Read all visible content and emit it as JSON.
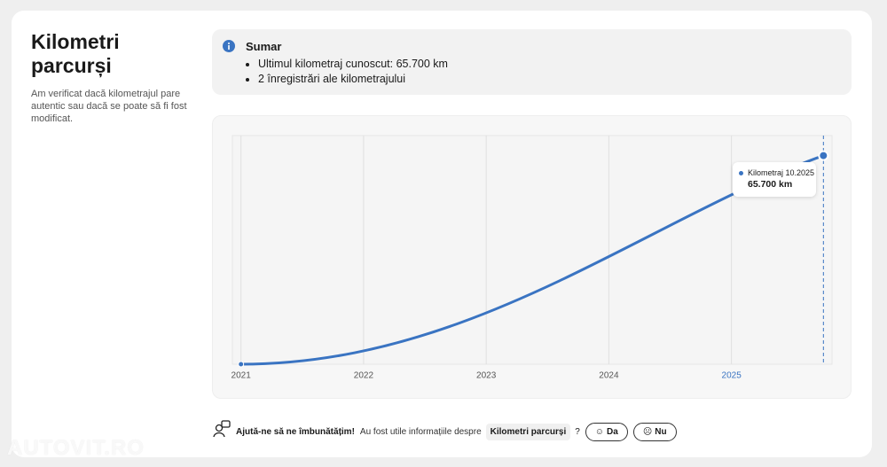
{
  "header": {
    "title": "Kilometri parcurși",
    "description": "Am verificat dacă kilometrajul pare autentic sau dacă se poate să fi fost modificat."
  },
  "summary": {
    "title": "Sumar",
    "items": [
      "Ultimul kilometraj cunoscut: 65.700 km",
      "2 înregistrări ale kilometrajului"
    ]
  },
  "chart_data": {
    "type": "line",
    "x": [
      2021,
      2025.75
    ],
    "values": [
      0,
      65700
    ],
    "value_labels": [
      null,
      "65.700 km"
    ],
    "series_name": "Kilometraj 10.2025",
    "color": "#3a74c2",
    "xlim": [
      2020.93,
      2025.82
    ],
    "xticks": [
      2021,
      2022,
      2023,
      2024,
      2025
    ],
    "ylim": [
      0,
      72000
    ],
    "grid": true
  },
  "feedback": {
    "title": "Ajută-ne să ne îmbunătățim!",
    "question": "Au fost utile informațiile despre",
    "topic": "Kilometri parcurși",
    "mark": "?",
    "yes": "Da",
    "no": "Nu"
  },
  "watermark": "AUTOVIT.RO"
}
